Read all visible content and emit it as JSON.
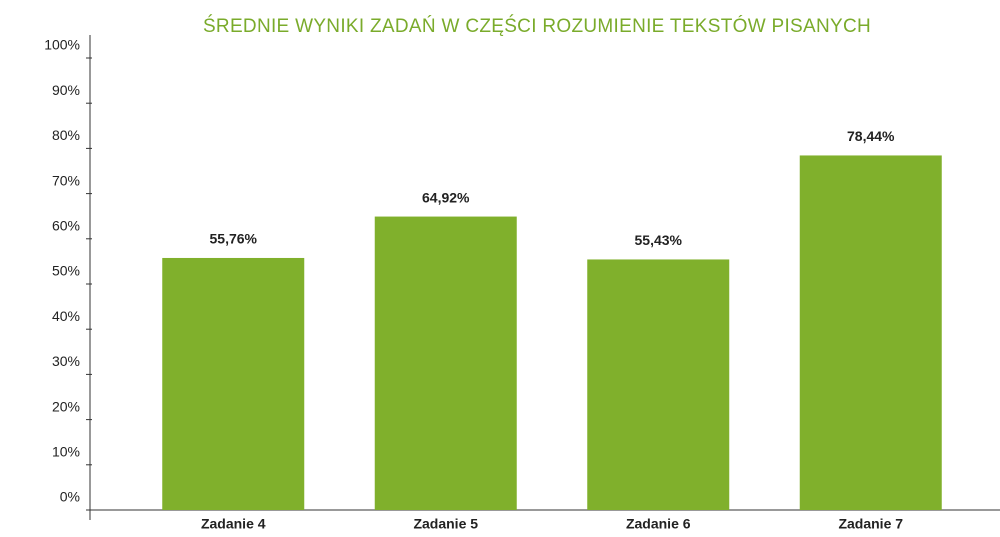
{
  "chart_data": {
    "type": "bar",
    "title": "ŚREDNIE WYNIKI ZADAŃ W CZĘŚCI ROZUMIENIE TEKSTÓW PISANYCH",
    "categories": [
      "Zadanie 4",
      "Zadanie 5",
      "Zadanie 6",
      "Zadanie 7"
    ],
    "values": [
      55.76,
      64.92,
      55.43,
      78.44
    ],
    "value_labels": [
      "55,76%",
      "64,92%",
      "55,43%",
      "78,44%"
    ],
    "color": "#80b02c",
    "ylim": [
      0,
      100
    ],
    "yticks": [
      {
        "value": 0,
        "label": "0%"
      },
      {
        "value": 10,
        "label": "10%"
      },
      {
        "value": 20,
        "label": "20%"
      },
      {
        "value": 30,
        "label": "30%"
      },
      {
        "value": 40,
        "label": "40%"
      },
      {
        "value": 50,
        "label": "50%"
      },
      {
        "value": 60,
        "label": "60%"
      },
      {
        "value": 70,
        "label": "70%"
      },
      {
        "value": 80,
        "label": "80%"
      },
      {
        "value": 90,
        "label": "90%"
      },
      {
        "value": 100,
        "label": "100%"
      }
    ],
    "grid": false
  }
}
